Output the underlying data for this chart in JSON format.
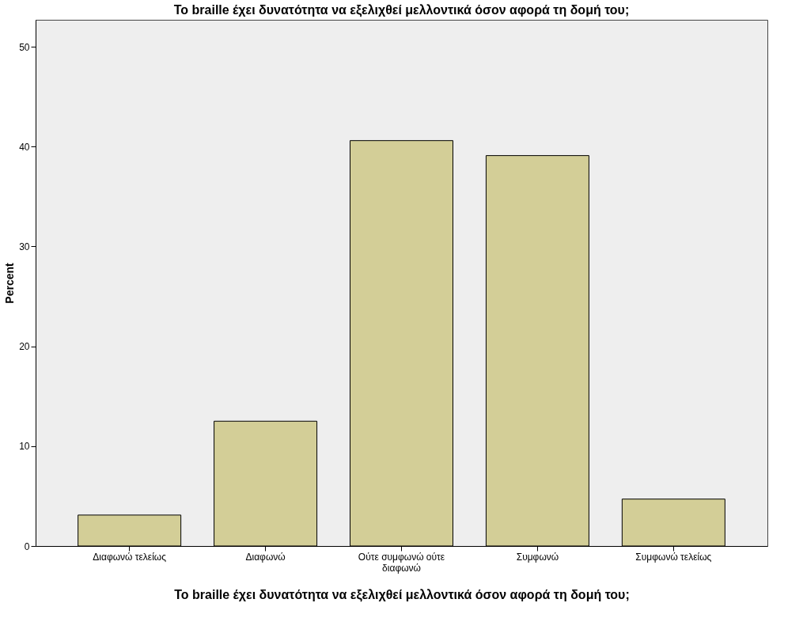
{
  "chart_data": {
    "type": "bar",
    "title": "Το braille έχει δυνατότητα να εξελιχθεί μελλοντικά όσον αφορά τη δομή του;",
    "xlabel": "Το braille έχει δυνατότητα να εξελιχθεί μελλοντικά όσον αφορά τη δομή του;",
    "ylabel": "Percent",
    "categories": [
      "Διαφωνώ τελείως",
      "Διαφωνώ",
      "Ούτε συμφωνώ ούτε διαφωνώ",
      "Συμφωνώ",
      "Συμφωνώ τελείως"
    ],
    "values": [
      3.1,
      12.5,
      40.6,
      39.1,
      4.7
    ],
    "color": "#d3ce97",
    "ylim": [
      0,
      52.7
    ],
    "yticks": [
      0,
      10,
      20,
      30,
      40,
      50
    ],
    "grid": false
  }
}
